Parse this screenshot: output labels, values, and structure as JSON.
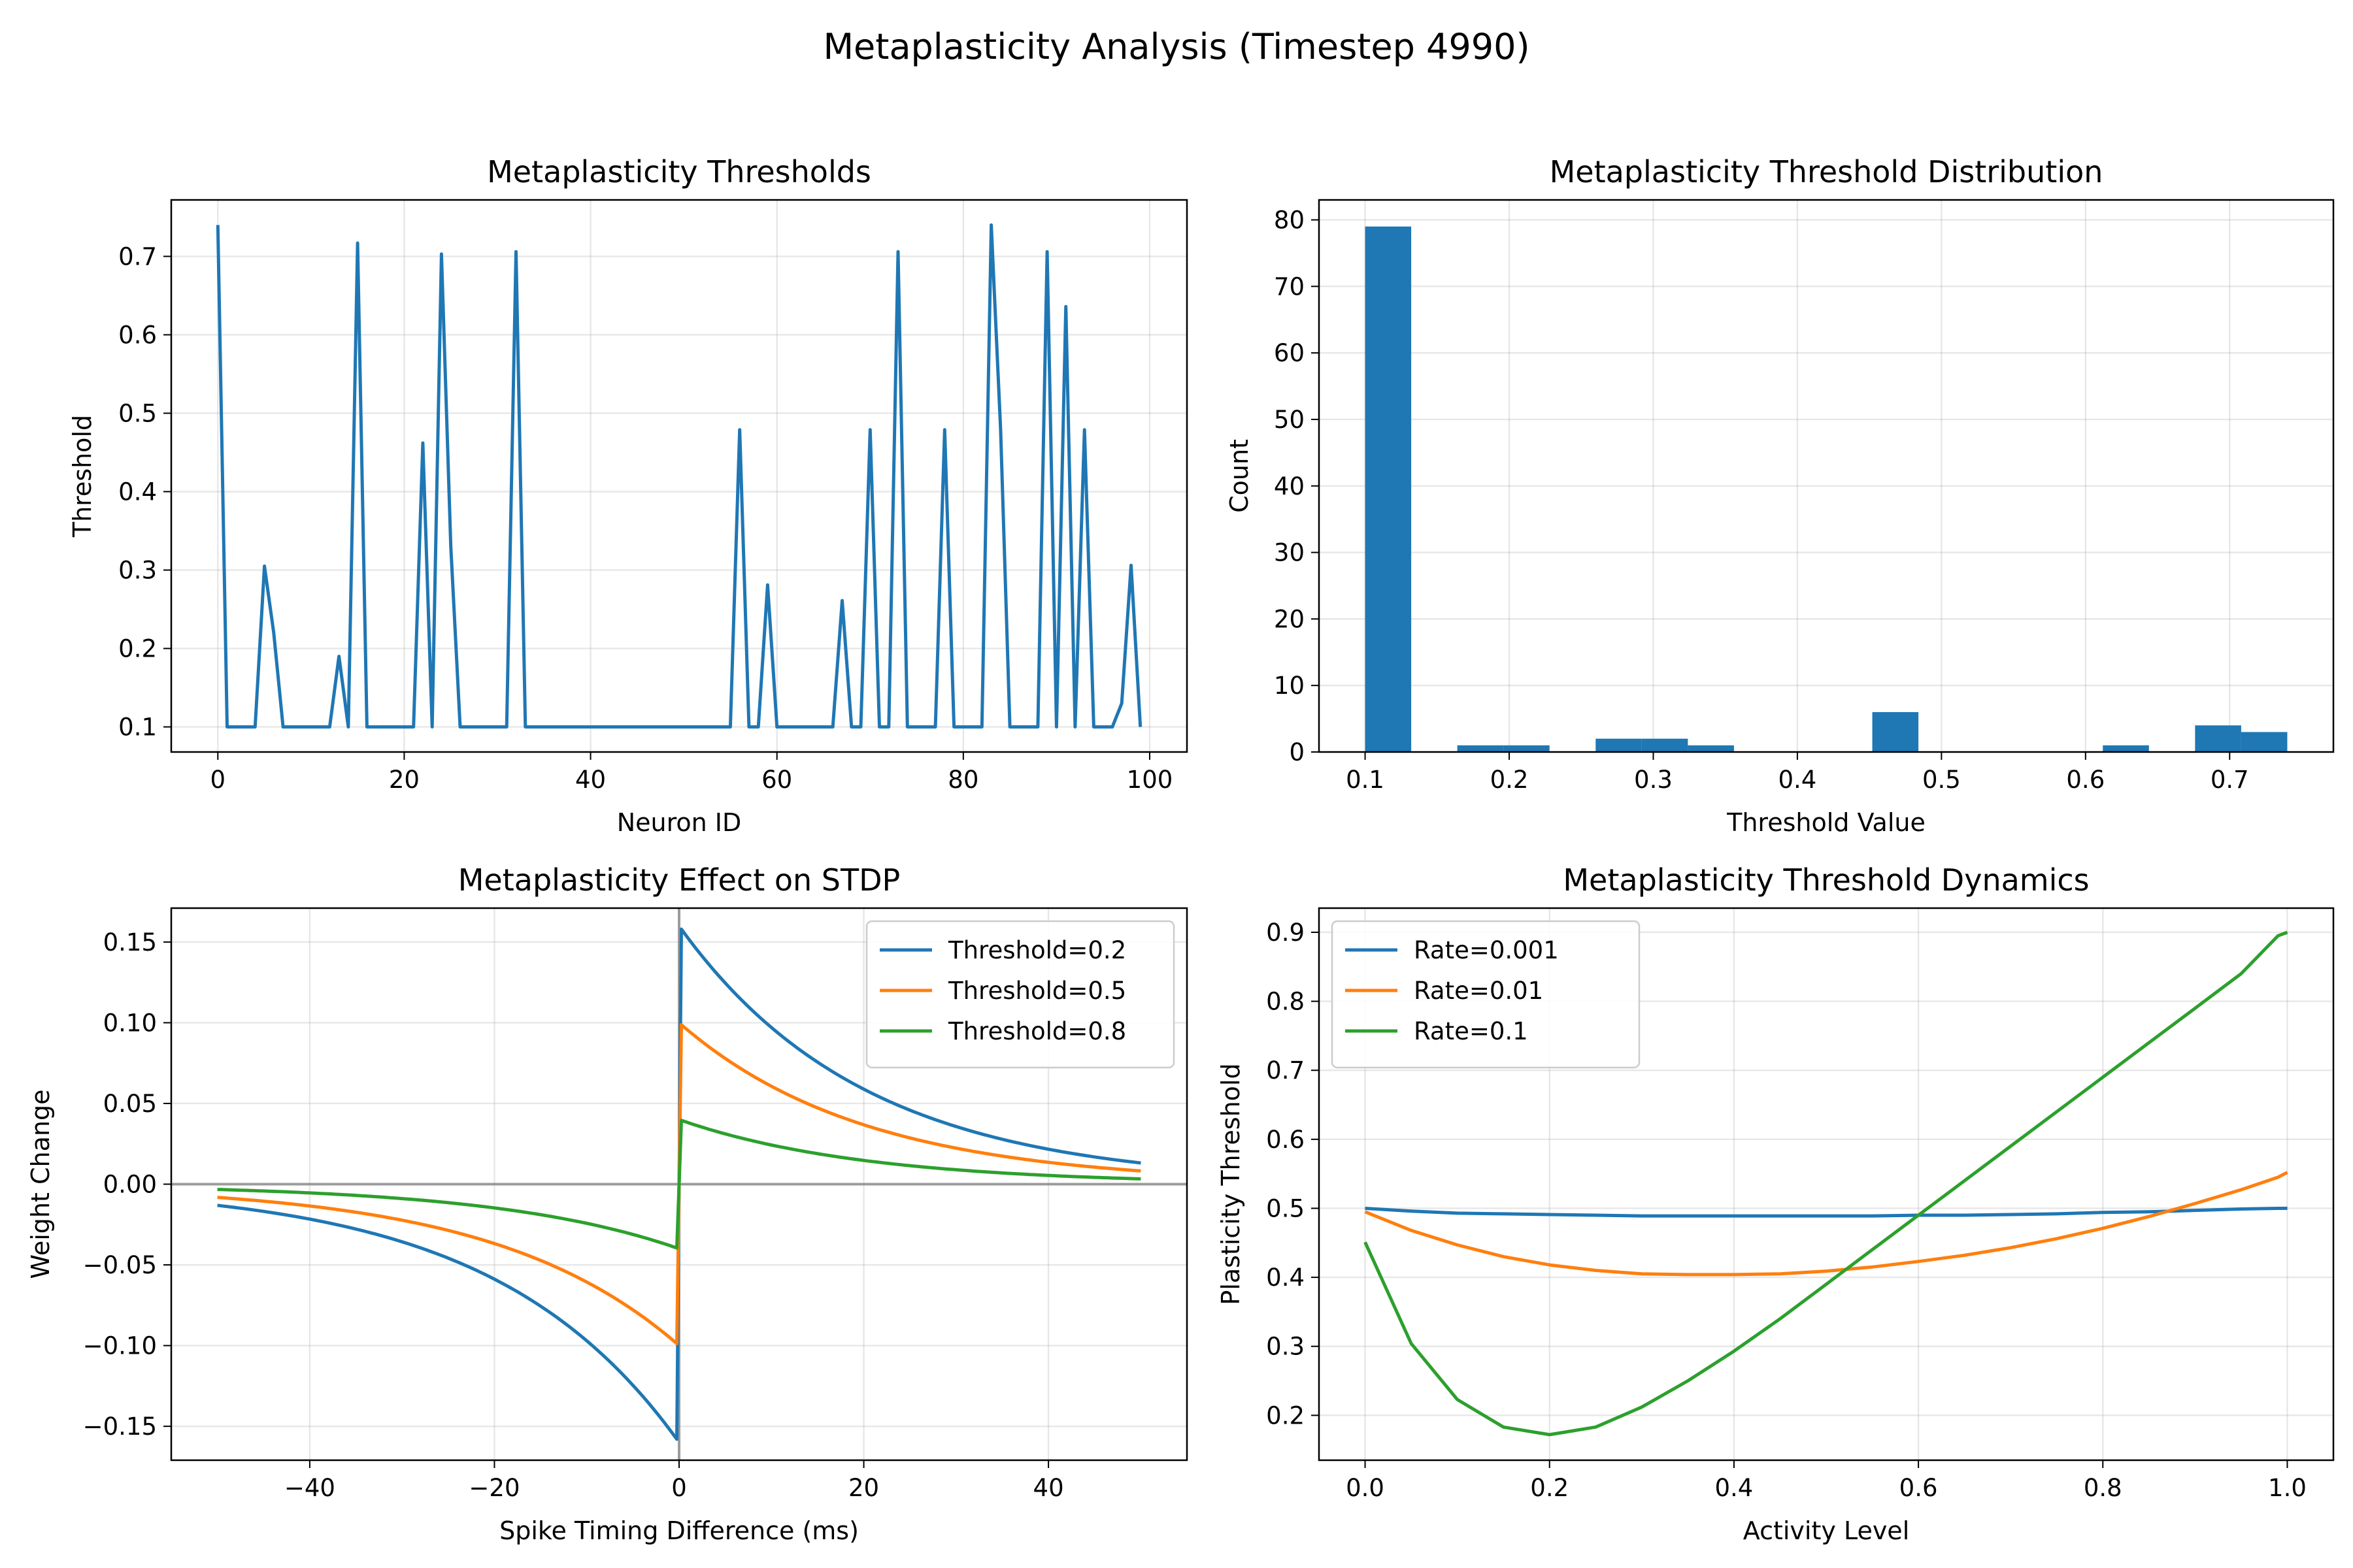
{
  "suptitle": "Metaplasticity Analysis (Timestep 4990)",
  "chart_data": [
    {
      "type": "line",
      "title": "Metaplasticity Thresholds",
      "xlabel": "Neuron ID",
      "ylabel": "Threshold",
      "xlim": [
        -5,
        104
      ],
      "ylim": [
        0.068,
        0.772
      ],
      "xticks": [
        0,
        20,
        40,
        60,
        80,
        100
      ],
      "yticks": [
        0.1,
        0.2,
        0.3,
        0.4,
        0.5,
        0.6,
        0.7
      ],
      "tick_decimals": {
        "x": 0,
        "y": 1
      },
      "grid": true,
      "colors": [
        "#1f77b4"
      ],
      "series": [
        {
          "values": [
            0.74,
            0.1,
            0.1,
            0.1,
            0.1,
            0.305,
            0.22,
            0.1,
            0.1,
            0.1,
            0.1,
            0.1,
            0.1,
            0.19,
            0.1,
            0.717,
            0.1,
            0.1,
            0.1,
            0.1,
            0.1,
            0.1,
            0.462,
            0.1,
            0.703,
            0.33,
            0.1,
            0.1,
            0.1,
            0.1,
            0.1,
            0.1,
            0.706,
            0.1,
            0.1,
            0.1,
            0.1,
            0.1,
            0.1,
            0.1,
            0.1,
            0.1,
            0.1,
            0.1,
            0.1,
            0.1,
            0.1,
            0.1,
            0.1,
            0.1,
            0.1,
            0.1,
            0.1,
            0.1,
            0.1,
            0.1,
            0.479,
            0.1,
            0.1,
            0.281,
            0.1,
            0.1,
            0.1,
            0.1,
            0.1,
            0.1,
            0.1,
            0.261,
            0.1,
            0.1,
            0.479,
            0.1,
            0.1,
            0.706,
            0.1,
            0.1,
            0.1,
            0.1,
            0.479,
            0.1,
            0.1,
            0.1,
            0.1,
            0.74,
            0.479,
            0.1,
            0.1,
            0.1,
            0.1,
            0.706,
            0.1,
            0.636,
            0.1,
            0.479,
            0.1,
            0.1,
            0.1,
            0.13,
            0.306,
            0.1
          ]
        }
      ]
    },
    {
      "type": "bar",
      "title": "Metaplasticity Threshold Distribution",
      "xlabel": "Threshold Value",
      "ylabel": "Count",
      "xlim": [
        0.068,
        0.772
      ],
      "ylim": [
        0,
        83
      ],
      "xticks": [
        0.1,
        0.2,
        0.3,
        0.4,
        0.5,
        0.6,
        0.7
      ],
      "yticks": [
        0,
        10,
        20,
        30,
        40,
        50,
        60,
        70,
        80
      ],
      "tick_decimals": {
        "x": 1,
        "y": 0
      },
      "grid": true,
      "colors": [
        "#1f77b4"
      ],
      "bin_edges": [
        0.1,
        0.132,
        0.164,
        0.196,
        0.228,
        0.26,
        0.292,
        0.324,
        0.356,
        0.388,
        0.42,
        0.452,
        0.484,
        0.516,
        0.548,
        0.58,
        0.612,
        0.644,
        0.676,
        0.708,
        0.74
      ],
      "values": [
        79,
        0,
        1,
        1,
        0,
        2,
        2,
        1,
        0,
        0,
        0,
        6,
        0,
        0,
        0,
        0,
        1,
        0,
        4,
        3
      ]
    },
    {
      "type": "line",
      "title": "Metaplasticity Effect on STDP",
      "xlabel": "Spike Timing Difference (ms)",
      "ylabel": "Weight Change",
      "xlim": [
        -55,
        55
      ],
      "ylim": [
        -0.171,
        0.171
      ],
      "xticks": [
        -40,
        -20,
        0,
        20,
        40
      ],
      "yticks": [
        -0.15,
        -0.1,
        -0.05,
        0.0,
        0.05,
        0.1,
        0.15
      ],
      "tick_decimals": {
        "x": 0,
        "y": 2
      },
      "grid": true,
      "legend": "top-right",
      "reference_lines": {
        "x": 0,
        "y": 0
      },
      "colors": [
        "#1f77b4",
        "#ff7f0e",
        "#2ca02c"
      ],
      "tau_ms": 20,
      "series": [
        {
          "name": "Threshold=0.2",
          "amplitude": 0.16
        },
        {
          "name": "Threshold=0.5",
          "amplitude": 0.1
        },
        {
          "name": "Threshold=0.8",
          "amplitude": 0.04
        }
      ]
    },
    {
      "type": "line",
      "title": "Metaplasticity Threshold Dynamics",
      "xlabel": "Activity Level",
      "ylabel": "Plasticity Threshold",
      "xlim": [
        -0.05,
        1.05
      ],
      "ylim": [
        0.135,
        0.935
      ],
      "xticks": [
        0.0,
        0.2,
        0.4,
        0.6,
        0.8,
        1.0
      ],
      "yticks": [
        0.2,
        0.3,
        0.4,
        0.5,
        0.6,
        0.7,
        0.8,
        0.9
      ],
      "tick_decimals": {
        "x": 1,
        "y": 1
      },
      "grid": true,
      "legend": "top-left",
      "colors": [
        "#1f77b4",
        "#ff7f0e",
        "#2ca02c"
      ],
      "x": [
        0.0,
        0.05,
        0.1,
        0.15,
        0.2,
        0.25,
        0.3,
        0.35,
        0.4,
        0.45,
        0.5,
        0.55,
        0.6,
        0.65,
        0.7,
        0.75,
        0.8,
        0.85,
        0.9,
        0.95,
        0.99,
        1.0
      ],
      "series": [
        {
          "name": "Rate=0.001",
          "values": [
            0.5,
            0.496,
            0.493,
            0.492,
            0.491,
            0.49,
            0.489,
            0.489,
            0.489,
            0.489,
            0.489,
            0.489,
            0.49,
            0.49,
            0.491,
            0.492,
            0.494,
            0.495,
            0.497,
            0.499,
            0.5,
            0.5
          ]
        },
        {
          "name": "Rate=0.01",
          "values": [
            0.495,
            0.468,
            0.447,
            0.43,
            0.418,
            0.41,
            0.405,
            0.404,
            0.404,
            0.405,
            0.409,
            0.415,
            0.423,
            0.432,
            0.443,
            0.456,
            0.471,
            0.488,
            0.507,
            0.527,
            0.545,
            0.552
          ]
        },
        {
          "name": "Rate=0.1",
          "values": [
            0.451,
            0.304,
            0.223,
            0.183,
            0.172,
            0.183,
            0.212,
            0.25,
            0.293,
            0.34,
            0.39,
            0.44,
            0.49,
            0.54,
            0.59,
            0.64,
            0.69,
            0.74,
            0.79,
            0.84,
            0.895,
            0.9
          ]
        }
      ]
    }
  ]
}
